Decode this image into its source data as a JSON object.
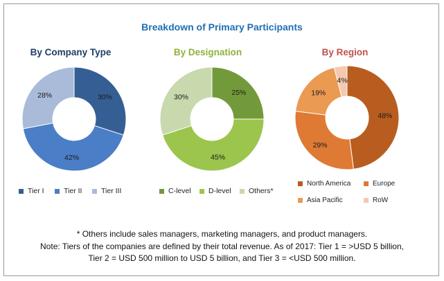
{
  "title": "Breakdown of Primary Participants",
  "colors": {
    "title": "#1f6fb2"
  },
  "chart_data": [
    {
      "type": "pie",
      "title": "By Company Type",
      "title_color": "#1f3f66",
      "categories": [
        "Tier I",
        "Tier II",
        "Tier III"
      ],
      "values": [
        30,
        42,
        28
      ],
      "labels": [
        "30%",
        "42%",
        "28%"
      ],
      "colors": [
        "#355f94",
        "#4a7ec6",
        "#a9bbd9"
      ],
      "start_deg": 0
    },
    {
      "type": "pie",
      "title": "By Designation",
      "title_color": "#8db33a",
      "categories": [
        "C-level",
        "D-level",
        "Others*"
      ],
      "values": [
        25,
        45,
        30
      ],
      "labels": [
        "25%",
        "45%",
        "30%"
      ],
      "colors": [
        "#739a3a",
        "#9bc54d",
        "#c8d9ad"
      ],
      "start_deg": 0
    },
    {
      "type": "pie",
      "title": "By Region",
      "title_color": "#c0504d",
      "categories": [
        "North America",
        "Europe",
        "Asia Pacific",
        "RoW"
      ],
      "values": [
        48,
        29,
        19,
        4
      ],
      "labels": [
        "48%",
        "29%",
        "19%",
        "4%"
      ],
      "colors": [
        "#b85d1f",
        "#df7a34",
        "#eb9a52",
        "#f5c9b0"
      ],
      "start_deg": 0
    }
  ],
  "notes": {
    "line1": "* Others include sales managers, marketing managers, and product managers.",
    "line2": "Note: Tiers of the companies are defined by their total revenue. As of 2017: Tier 1 = >USD 5 billion,",
    "line3": "Tier 2 = USD 500 million to USD 5 billion, and Tier 3 = <USD 500 million."
  }
}
